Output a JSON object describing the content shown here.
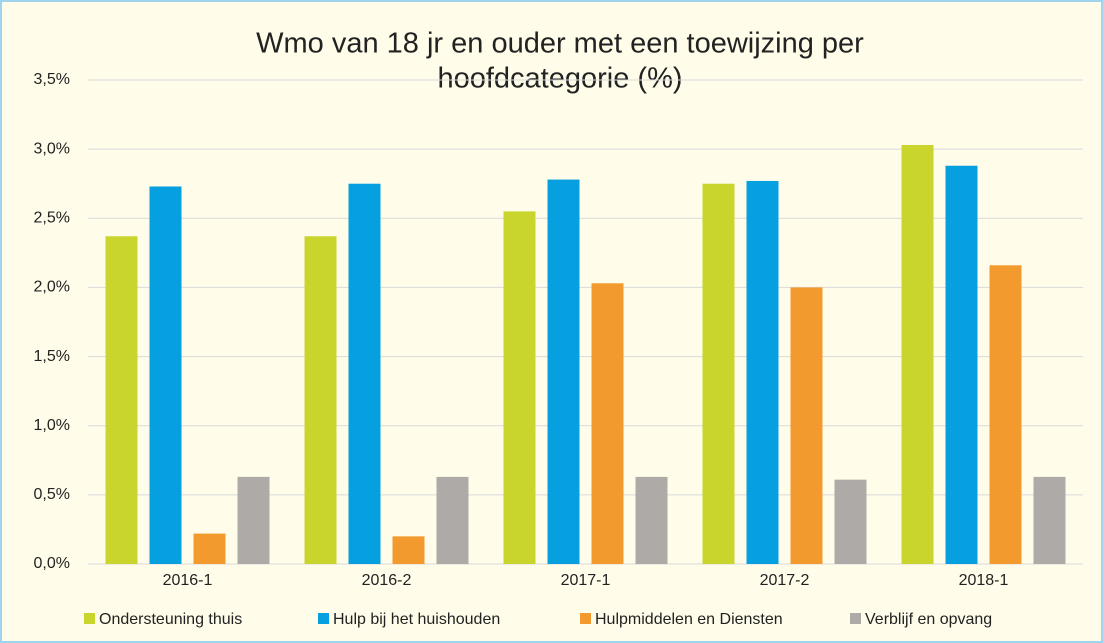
{
  "chart_data": {
    "type": "bar",
    "title": [
      "Wmo van 18 jr en ouder met een toewijzing per",
      "hoofdcategorie (%)"
    ],
    "categories": [
      "2016-1",
      "2016-2",
      "2017-1",
      "2017-2",
      "2018-1"
    ],
    "series": [
      {
        "name": "Ondersteuning thuis",
        "color": "#c9d52c",
        "values": [
          2.37,
          2.37,
          2.55,
          2.75,
          3.03
        ]
      },
      {
        "name": "Hulp bij het huishouden",
        "color": "#069fe0",
        "values": [
          2.73,
          2.75,
          2.78,
          2.77,
          2.88
        ]
      },
      {
        "name": "Hulpmiddelen en Diensten",
        "color": "#f39a2f",
        "values": [
          0.22,
          0.2,
          2.03,
          2.0,
          2.16
        ]
      },
      {
        "name": "Verblijf en opvang",
        "color": "#aeaaa8",
        "values": [
          0.63,
          0.63,
          0.63,
          0.61,
          0.63
        ]
      }
    ],
    "ylim": [
      0,
      3.5
    ],
    "yticks": [
      {
        "value": 0,
        "label": "0,0%"
      },
      {
        "value": 0.5,
        "label": "0,5%"
      },
      {
        "value": 1,
        "label": "1,0%"
      },
      {
        "value": 1.5,
        "label": "1,5%"
      },
      {
        "value": 2,
        "label": "2,0%"
      },
      {
        "value": 2.5,
        "label": "2,5%"
      },
      {
        "value": 3,
        "label": "3,0%"
      },
      {
        "value": 3.5,
        "label": "3,5%"
      }
    ],
    "grid": true,
    "legend": "bottom"
  }
}
